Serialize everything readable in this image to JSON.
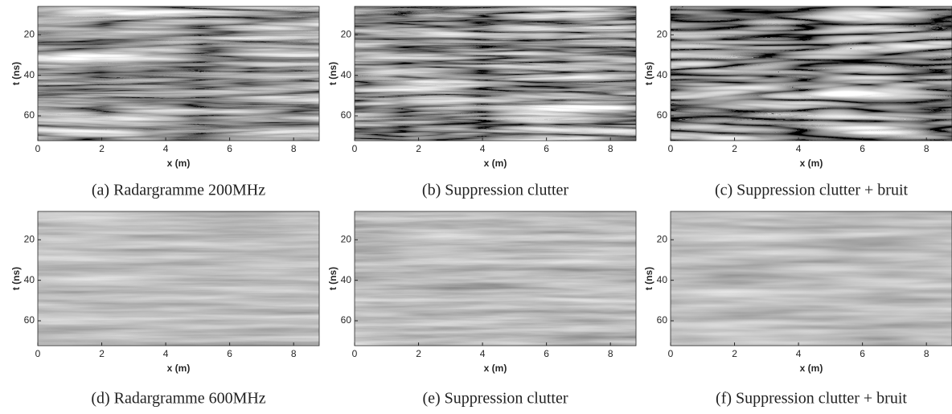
{
  "figure": {
    "panels": [
      {
        "caption": "(a) Radargramme 200MHz",
        "xlabel": "x (m)",
        "ylabel": "t (ns)",
        "xlim": [
          0,
          8.8
        ],
        "ylim": [
          6,
          72.3
        ],
        "xticks": [
          0,
          2,
          4,
          6,
          8
        ],
        "yticks": [
          20,
          40,
          60
        ]
      },
      {
        "caption": "(b) Suppression clutter",
        "xlabel": "x (m)",
        "ylabel": "t (ns)",
        "xlim": [
          0,
          8.8
        ],
        "ylim": [
          6,
          72.3
        ],
        "xticks": [
          0,
          2,
          4,
          6,
          8
        ],
        "yticks": [
          20,
          40,
          60
        ]
      },
      {
        "caption": "(c) Suppression clutter + bruit",
        "xlabel": "x (m)",
        "ylabel": "t (ns)",
        "xlim": [
          0,
          8.8
        ],
        "ylim": [
          6,
          72.3
        ],
        "xticks": [
          0,
          2,
          4,
          6,
          8
        ],
        "yticks": [
          20,
          40,
          60
        ]
      },
      {
        "caption": "(d) Radargramme 600MHz",
        "xlabel": "x (m)",
        "ylabel": "t (ns)",
        "xlim": [
          0,
          8.8
        ],
        "ylim": [
          6,
          72.3
        ],
        "xticks": [
          0,
          2,
          4,
          6,
          8
        ],
        "yticks": [
          20,
          40,
          60
        ]
      },
      {
        "caption": "(e) Suppression clutter",
        "xlabel": "x (m)",
        "ylabel": "t (ns)",
        "xlim": [
          0,
          8.8
        ],
        "ylim": [
          6,
          72.3
        ],
        "xticks": [
          0,
          2,
          4,
          6,
          8
        ],
        "yticks": [
          20,
          40,
          60
        ]
      },
      {
        "caption": "(f) Suppression clutter + bruit",
        "xlabel": "x (m)",
        "ylabel": "t (ns)",
        "xlim": [
          0,
          8.8
        ],
        "ylim": [
          6,
          72.3
        ],
        "xticks": [
          0,
          2,
          4,
          6,
          8
        ],
        "yticks": [
          20,
          40,
          60
        ]
      }
    ]
  }
}
